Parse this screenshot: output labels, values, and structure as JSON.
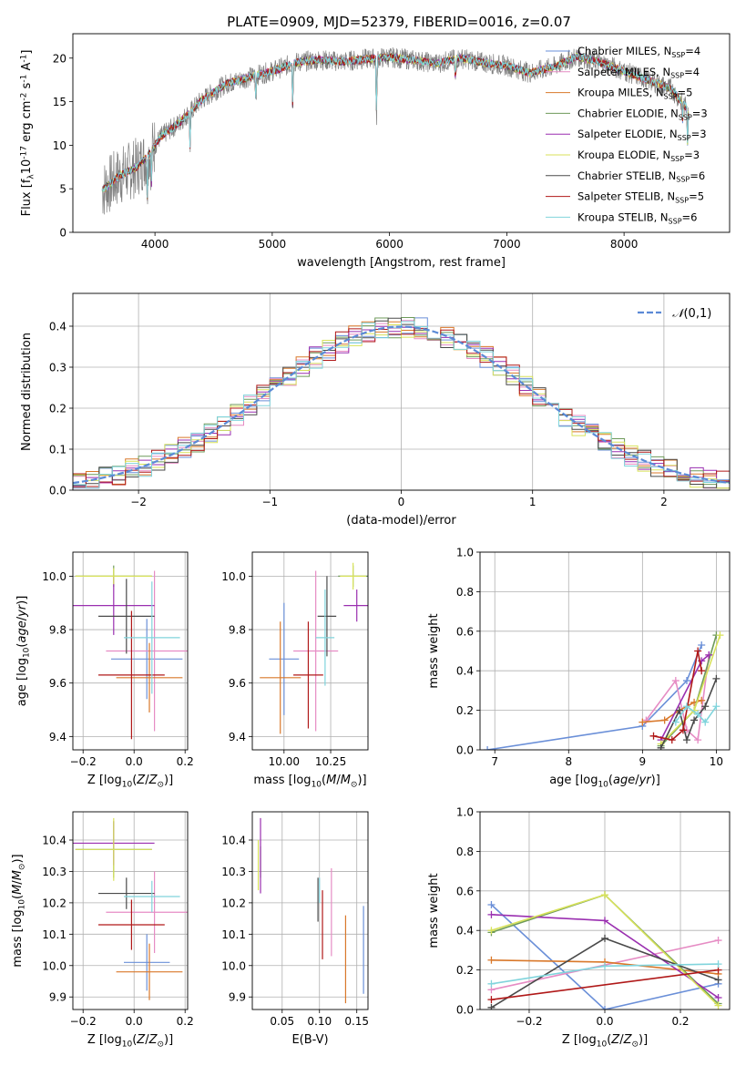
{
  "title": "PLATE=0909, MJD=52379, FIBERID=0016, z=0.07",
  "colors": {
    "Chabrier MILES": "#6a8fd8",
    "Salpeter MILES": "#e68cc4",
    "Kroupa MILES": "#d9782a",
    "Chabrier ELODIE": "#6e9a5a",
    "Salpeter ELODIE": "#9a2fb0",
    "Kroupa ELODIE": "#d8e25a",
    "Chabrier STELIB": "#4a4a4a",
    "Salpeter STELIB": "#b01818",
    "Kroupa STELIB": "#80d4dc",
    "observed": "#808080",
    "gaussian": "#5b8ad6"
  },
  "legend_entries": [
    {
      "label": "Chabrier MILES, N$_{SSP}$=4",
      "key": "Chabrier MILES"
    },
    {
      "label": "Salpeter MILES, N$_{SSP}$=4",
      "key": "Salpeter MILES"
    },
    {
      "label": "Kroupa MILES, N$_{SSP}$=5",
      "key": "Kroupa MILES"
    },
    {
      "label": "Chabrier ELODIE, N$_{SSP}$=3",
      "key": "Chabrier ELODIE"
    },
    {
      "label": "Salpeter ELODIE, N$_{SSP}$=3",
      "key": "Salpeter ELODIE"
    },
    {
      "label": "Kroupa ELODIE, N$_{SSP}$=3",
      "key": "Kroupa ELODIE"
    },
    {
      "label": "Chabrier STELIB, N$_{SSP}$=6",
      "key": "Chabrier STELIB"
    },
    {
      "label": "Salpeter STELIB, N$_{SSP}$=5",
      "key": "Salpeter STELIB"
    },
    {
      "label": "Kroupa STELIB, N$_{SSP}$=6",
      "key": "Kroupa STELIB"
    }
  ],
  "chart_data": [
    {
      "id": "spectrum",
      "type": "line",
      "xlabel": "wavelength [Angstrom, rest frame]",
      "ylabel": "Flux [f$_\\lambda$10$^{-17}$ erg cm$^{-2}$ s$^{-1}$ A$^{-1}$]",
      "xlim": [
        3300,
        8900
      ],
      "ylim": [
        0,
        22.8
      ],
      "xticks": [
        4000,
        5000,
        6000,
        7000,
        8000
      ],
      "yticks": [
        0,
        5,
        10,
        15,
        20
      ],
      "observed_continuum": {
        "x": [
          3550,
          3700,
          3850,
          3950,
          4050,
          4200,
          4400,
          4600,
          4800,
          5000,
          5200,
          5400,
          5600,
          5800,
          6000,
          6200,
          6400,
          6600,
          6800,
          7000,
          7200,
          7400,
          7600,
          7800,
          8000,
          8200,
          8400,
          8550
        ],
        "y": [
          4.8,
          6.5,
          7.5,
          9,
          11,
          12.5,
          15.2,
          17,
          17.8,
          18.5,
          19.5,
          19.8,
          19.6,
          19.9,
          20.1,
          19.8,
          19.4,
          20,
          19.5,
          19.1,
          18.3,
          19,
          20.2,
          19.5,
          18.5,
          17.5,
          16.5,
          14
        ]
      },
      "absorption_features": [
        {
          "x": 3934,
          "depth": 5
        },
        {
          "x": 3969,
          "depth": 4
        },
        {
          "x": 4300,
          "depth": 4
        },
        {
          "x": 4861,
          "depth": 3
        },
        {
          "x": 5175,
          "depth": 5
        },
        {
          "x": 5890,
          "depth": 8
        },
        {
          "x": 6563,
          "depth": 3
        },
        {
          "x": 8498,
          "depth": 2
        },
        {
          "x": 8542,
          "depth": 4
        },
        {
          "x": 8662,
          "depth": 3
        }
      ]
    },
    {
      "id": "residuals",
      "type": "histogram",
      "xlabel": "(data-model)/error",
      "ylabel": "Normed distribution",
      "xlim": [
        -2.5,
        2.5
      ],
      "ylim": [
        0,
        0.48
      ],
      "xticks": [
        -2,
        -1,
        0,
        1,
        2
      ],
      "yticks": [
        0.0,
        0.1,
        0.2,
        0.3,
        0.4
      ],
      "bin_width": 0.1,
      "gaussian_label": "$\\mathcal{N}(0,1)$",
      "gaussian": {
        "mu": 0,
        "sigma": 1
      }
    },
    {
      "id": "age_vs_Z",
      "type": "scatter",
      "xlabel": "Z [log$_{10}$($Z/Z_\\odot$)]",
      "ylabel": "age  [log$_{10}$($age/yr$)]",
      "xlim": [
        -0.24,
        0.21
      ],
      "ylim": [
        9.35,
        10.09
      ],
      "xticks": [
        -0.2,
        0.0,
        0.2
      ],
      "yticks": [
        9.4,
        9.6,
        9.8,
        10.0
      ],
      "points": [
        {
          "key": "Chabrier MILES",
          "x": 0.05,
          "xerr": 0.14,
          "y": 9.69,
          "yerr": 0.15
        },
        {
          "key": "Salpeter MILES",
          "x": 0.08,
          "xerr": 0.19,
          "y": 9.72,
          "yerr": 0.3
        },
        {
          "key": "Kroupa MILES",
          "x": 0.06,
          "xerr": 0.13,
          "y": 9.62,
          "yerr": 0.13
        },
        {
          "key": "Chabrier ELODIE",
          "x": -0.08,
          "xerr": 0.15,
          "y": 10.0,
          "yerr": 0.04
        },
        {
          "key": "Salpeter ELODIE",
          "x": -0.08,
          "xerr": 0.16,
          "y": 9.89,
          "yerr": 0.11
        },
        {
          "key": "Kroupa ELODIE",
          "x": -0.08,
          "xerr": 0.15,
          "y": 10.0,
          "yerr": 0.03
        },
        {
          "key": "Chabrier STELIB",
          "x": -0.03,
          "xerr": 0.11,
          "y": 9.85,
          "yerr": 0.14
        },
        {
          "key": "Salpeter STELIB",
          "x": -0.01,
          "xerr": 0.13,
          "y": 9.63,
          "yerr": 0.24
        },
        {
          "key": "Kroupa STELIB",
          "x": 0.07,
          "xerr": 0.11,
          "y": 9.77,
          "yerr": 0.21
        }
      ]
    },
    {
      "id": "age_vs_mass",
      "type": "scatter",
      "xlabel": "mass [log$_{10}$($M/M_\\odot$)]",
      "ylabel": "",
      "xlim": [
        9.83,
        10.45
      ],
      "ylim": [
        9.35,
        10.09
      ],
      "xticks": [
        10.0,
        10.25
      ],
      "yticks": [
        9.4,
        9.6,
        9.8,
        10.0
      ],
      "points": [
        {
          "key": "Chabrier MILES",
          "x": 10.0,
          "xerr": 0.08,
          "y": 9.69,
          "yerr": 0.21
        },
        {
          "key": "Salpeter MILES",
          "x": 10.17,
          "xerr": 0.12,
          "y": 9.72,
          "yerr": 0.3
        },
        {
          "key": "Kroupa MILES",
          "x": 9.98,
          "xerr": 0.11,
          "y": 9.62,
          "yerr": 0.21
        },
        {
          "key": "Chabrier ELODIE",
          "x": 10.37,
          "xerr": 0.08,
          "y": 10.0,
          "yerr": 0.04
        },
        {
          "key": "Salpeter ELODIE",
          "x": 10.39,
          "xerr": 0.07,
          "y": 9.89,
          "yerr": 0.06
        },
        {
          "key": "Kroupa ELODIE",
          "x": 10.37,
          "xerr": 0.07,
          "y": 10.0,
          "yerr": 0.05
        },
        {
          "key": "Chabrier STELIB",
          "x": 10.23,
          "xerr": 0.05,
          "y": 9.85,
          "yerr": 0.15
        },
        {
          "key": "Salpeter STELIB",
          "x": 10.13,
          "xerr": 0.08,
          "y": 9.63,
          "yerr": 0.2
        },
        {
          "key": "Kroupa STELIB",
          "x": 10.22,
          "xerr": 0.05,
          "y": 9.77,
          "yerr": 0.18
        }
      ]
    },
    {
      "id": "weight_vs_age",
      "type": "line",
      "xlabel": "age  [log$_{10}$($age/yr$)]",
      "ylabel": "mass weight",
      "xlim": [
        6.8,
        10.18
      ],
      "ylim": [
        0,
        1.0
      ],
      "xticks": [
        7,
        8,
        9,
        10
      ],
      "yticks": [
        0.0,
        0.2,
        0.4,
        0.6,
        0.8,
        1.0
      ],
      "series": [
        {
          "key": "Chabrier MILES",
          "x": [
            6.9,
            9.0,
            9.6,
            9.8
          ],
          "y": [
            0.0,
            0.12,
            0.35,
            0.53
          ]
        },
        {
          "key": "Salpeter MILES",
          "x": [
            9.05,
            9.45,
            9.6,
            9.75,
            9.9
          ],
          "y": [
            0.15,
            0.35,
            0.1,
            0.05,
            0.48
          ]
        },
        {
          "key": "Kroupa MILES",
          "x": [
            9.0,
            9.3,
            9.5,
            9.7,
            9.8
          ],
          "y": [
            0.14,
            0.15,
            0.2,
            0.24,
            0.25
          ]
        },
        {
          "key": "Chabrier ELODIE",
          "x": [
            9.25,
            9.7,
            10.0
          ],
          "y": [
            0.02,
            0.2,
            0.58
          ]
        },
        {
          "key": "Salpeter ELODIE",
          "x": [
            9.25,
            9.8,
            9.9
          ],
          "y": [
            0.05,
            0.45,
            0.48
          ]
        },
        {
          "key": "Kroupa ELODIE",
          "x": [
            9.25,
            9.7,
            10.05
          ],
          "y": [
            0.03,
            0.2,
            0.58
          ]
        },
        {
          "key": "Chabrier STELIB",
          "x": [
            9.25,
            9.5,
            9.6,
            9.7,
            9.85,
            10.0
          ],
          "y": [
            0.01,
            0.2,
            0.05,
            0.15,
            0.22,
            0.36
          ]
        },
        {
          "key": "Salpeter STELIB",
          "x": [
            9.15,
            9.4,
            9.55,
            9.75,
            9.8
          ],
          "y": [
            0.07,
            0.05,
            0.1,
            0.5,
            0.4
          ]
        },
        {
          "key": "Kroupa STELIB",
          "x": [
            9.45,
            9.6,
            9.75,
            9.85,
            10.0
          ],
          "y": [
            0.14,
            0.22,
            0.18,
            0.14,
            0.22
          ]
        }
      ]
    },
    {
      "id": "mass_vs_Z",
      "type": "scatter",
      "xlabel": "Z [log$_{10}$($Z/Z_\\odot$)]",
      "ylabel": "mass [log$_{10}$($M/M_\\odot$)]",
      "xlim": [
        -0.24,
        0.21
      ],
      "ylim": [
        9.86,
        10.49
      ],
      "xticks": [
        -0.2,
        0.0,
        0.2
      ],
      "yticks": [
        9.9,
        10.0,
        10.1,
        10.2,
        10.3,
        10.4
      ],
      "points": [
        {
          "key": "Chabrier MILES",
          "x": 0.05,
          "xerr": 0.09,
          "y": 10.01,
          "yerr": 0.09
        },
        {
          "key": "Salpeter MILES",
          "x": 0.08,
          "xerr": 0.19,
          "y": 10.17,
          "yerr": 0.13
        },
        {
          "key": "Kroupa MILES",
          "x": 0.06,
          "xerr": 0.13,
          "y": 9.98,
          "yerr": 0.09
        },
        {
          "key": "Chabrier ELODIE",
          "x": -0.08,
          "xerr": 0.15,
          "y": 10.37,
          "yerr": 0.09
        },
        {
          "key": "Salpeter ELODIE",
          "x": -0.08,
          "xerr": 0.16,
          "y": 10.39,
          "yerr": 0.07
        },
        {
          "key": "Kroupa ELODIE",
          "x": -0.08,
          "xerr": 0.15,
          "y": 10.37,
          "yerr": 0.1
        },
        {
          "key": "Chabrier STELIB",
          "x": -0.03,
          "xerr": 0.11,
          "y": 10.23,
          "yerr": 0.05
        },
        {
          "key": "Salpeter STELIB",
          "x": -0.01,
          "xerr": 0.13,
          "y": 10.13,
          "yerr": 0.08
        },
        {
          "key": "Kroupa STELIB",
          "x": 0.07,
          "xerr": 0.11,
          "y": 10.22,
          "yerr": 0.05
        }
      ]
    },
    {
      "id": "mass_vs_ebv",
      "type": "scatter",
      "xlabel": "E(B-V)",
      "ylabel": "",
      "xlim": [
        0.01,
        0.165
      ],
      "ylim": [
        9.86,
        10.49
      ],
      "xticks": [
        0.05,
        0.1,
        0.15
      ],
      "yticks": [
        9.9,
        10.0,
        10.1,
        10.2,
        10.3,
        10.4
      ],
      "points": [
        {
          "key": "Chabrier MILES",
          "x": 0.159,
          "yerr": 0.14,
          "y": 10.05
        },
        {
          "key": "Salpeter MILES",
          "x": 0.116,
          "yerr": 0.14,
          "y": 10.17
        },
        {
          "key": "Kroupa MILES",
          "x": 0.135,
          "yerr": 0.14,
          "y": 10.02
        },
        {
          "key": "Chabrier ELODIE",
          "x": 0.021,
          "yerr": 0.05,
          "y": 10.33
        },
        {
          "key": "Salpeter ELODIE",
          "x": 0.021,
          "yerr": 0.12,
          "y": 10.35
        },
        {
          "key": "Kroupa ELODIE",
          "x": 0.018,
          "yerr": 0.08,
          "y": 10.32
        },
        {
          "key": "Chabrier STELIB",
          "x": 0.098,
          "yerr": 0.07,
          "y": 10.21
        },
        {
          "key": "Salpeter STELIB",
          "x": 0.104,
          "yerr": 0.11,
          "y": 10.13
        },
        {
          "key": "Kroupa STELIB",
          "x": 0.1,
          "yerr": 0.04,
          "y": 10.24
        }
      ]
    },
    {
      "id": "weight_vs_Z",
      "type": "line",
      "xlabel": "Z [log$_{10}$($Z/Z_\\odot$)]",
      "ylabel": "mass weight",
      "xlim": [
        -0.33,
        0.33
      ],
      "ylim": [
        0,
        1.0
      ],
      "xticks": [
        -0.2,
        0.0,
        0.2
      ],
      "yticks": [
        0.0,
        0.2,
        0.4,
        0.6,
        0.8,
        1.0
      ],
      "series": [
        {
          "key": "Chabrier MILES",
          "x": [
            -0.3,
            0.0,
            0.3
          ],
          "y": [
            0.53,
            0.0,
            0.13
          ]
        },
        {
          "key": "Salpeter MILES",
          "x": [
            -0.3,
            0.3
          ],
          "y": [
            0.1,
            0.35
          ]
        },
        {
          "key": "Kroupa MILES",
          "x": [
            -0.3,
            0.0,
            0.3
          ],
          "y": [
            0.25,
            0.24,
            0.18
          ]
        },
        {
          "key": "Chabrier ELODIE",
          "x": [
            -0.3,
            0.0,
            0.3
          ],
          "y": [
            0.39,
            0.58,
            0.03
          ]
        },
        {
          "key": "Salpeter ELODIE",
          "x": [
            -0.3,
            0.0,
            0.3
          ],
          "y": [
            0.48,
            0.45,
            0.06
          ]
        },
        {
          "key": "Kroupa ELODIE",
          "x": [
            -0.3,
            0.0,
            0.3
          ],
          "y": [
            0.4,
            0.58,
            0.02
          ]
        },
        {
          "key": "Chabrier STELIB",
          "x": [
            -0.3,
            0.0,
            0.3
          ],
          "y": [
            0.01,
            0.36,
            0.15
          ]
        },
        {
          "key": "Salpeter STELIB",
          "x": [
            -0.3,
            0.3
          ],
          "y": [
            0.05,
            0.2
          ]
        },
        {
          "key": "Kroupa STELIB",
          "x": [
            -0.3,
            0.0,
            0.3
          ],
          "y": [
            0.13,
            0.22,
            0.23
          ]
        }
      ]
    }
  ]
}
